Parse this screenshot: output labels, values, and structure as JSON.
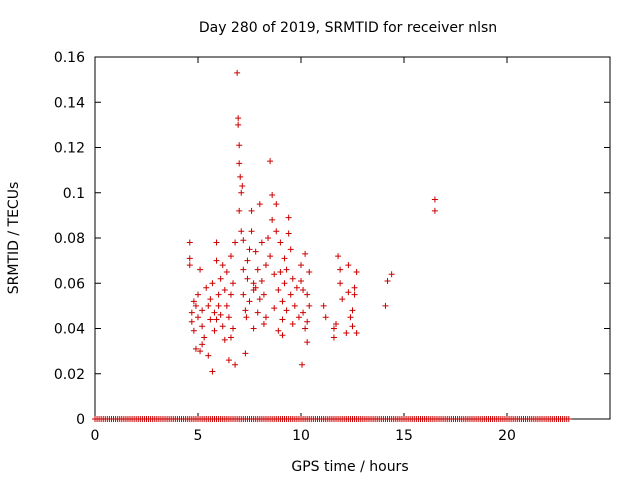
{
  "chart_data": {
    "type": "scatter",
    "title": "Day 280 of 2019, SRMTID for receiver nlsn",
    "xlabel": "GPS time / hours",
    "ylabel": "SRMTID / TECUs",
    "xlim": [
      0,
      25
    ],
    "ylim": [
      0,
      0.16
    ],
    "xticks": [
      0,
      5,
      10,
      15,
      20
    ],
    "yticks": [
      0,
      0.02,
      0.04,
      0.06,
      0.08,
      0.1,
      0.12,
      0.14,
      0.16
    ],
    "xtick_labels": [
      "0",
      "5",
      "10",
      "15",
      "20"
    ],
    "ytick_labels": [
      "0",
      "0.02",
      "0.04",
      "0.06",
      "0.08",
      "0.1",
      "0.12",
      "0.14",
      "0.16"
    ],
    "grid": false,
    "marker": "+",
    "color": "#cc0000",
    "zero_series_x_range": [
      0,
      23
    ],
    "points": [
      [
        4.6,
        0.078
      ],
      [
        4.6,
        0.071
      ],
      [
        4.6,
        0.068
      ],
      [
        4.7,
        0.047
      ],
      [
        4.7,
        0.043
      ],
      [
        4.8,
        0.039
      ],
      [
        4.8,
        0.052
      ],
      [
        4.9,
        0.031
      ],
      [
        4.9,
        0.05
      ],
      [
        5.0,
        0.045
      ],
      [
        5.0,
        0.055
      ],
      [
        5.1,
        0.03
      ],
      [
        5.1,
        0.066
      ],
      [
        5.2,
        0.048
      ],
      [
        5.2,
        0.041
      ],
      [
        5.3,
        0.036
      ],
      [
        5.4,
        0.058
      ],
      [
        5.5,
        0.05
      ],
      [
        5.5,
        0.028
      ],
      [
        5.6,
        0.044
      ],
      [
        5.6,
        0.053
      ],
      [
        5.7,
        0.021
      ],
      [
        5.7,
        0.06
      ],
      [
        5.8,
        0.039
      ],
      [
        5.8,
        0.047
      ],
      [
        5.9,
        0.07
      ],
      [
        5.9,
        0.078
      ],
      [
        6.0,
        0.05
      ],
      [
        6.0,
        0.055
      ],
      [
        6.1,
        0.046
      ],
      [
        6.1,
        0.062
      ],
      [
        6.2,
        0.041
      ],
      [
        6.2,
        0.068
      ],
      [
        6.3,
        0.057
      ],
      [
        6.3,
        0.035
      ],
      [
        6.4,
        0.05
      ],
      [
        6.4,
        0.065
      ],
      [
        6.5,
        0.026
      ],
      [
        6.5,
        0.045
      ],
      [
        6.6,
        0.055
      ],
      [
        6.6,
        0.072
      ],
      [
        6.7,
        0.04
      ],
      [
        6.7,
        0.06
      ],
      [
        6.8,
        0.024
      ],
      [
        6.8,
        0.078
      ],
      [
        6.9,
        0.153
      ],
      [
        6.95,
        0.133
      ],
      [
        6.95,
        0.13
      ],
      [
        7.0,
        0.121
      ],
      [
        7.0,
        0.113
      ],
      [
        7.0,
        0.092
      ],
      [
        7.05,
        0.107
      ],
      [
        7.1,
        0.1
      ],
      [
        7.15,
        0.103
      ],
      [
        7.1,
        0.083
      ],
      [
        7.2,
        0.079
      ],
      [
        7.2,
        0.066
      ],
      [
        7.2,
        0.055
      ],
      [
        7.3,
        0.048
      ],
      [
        7.3,
        0.029
      ],
      [
        7.35,
        0.045
      ],
      [
        7.4,
        0.062
      ],
      [
        7.4,
        0.07
      ],
      [
        7.5,
        0.052
      ],
      [
        7.5,
        0.075
      ],
      [
        7.6,
        0.092
      ],
      [
        7.6,
        0.083
      ],
      [
        7.7,
        0.06
      ],
      [
        7.7,
        0.04
      ],
      [
        7.8,
        0.058
      ],
      [
        7.8,
        0.074
      ],
      [
        7.9,
        0.047
      ],
      [
        7.9,
        0.066
      ],
      [
        8.0,
        0.053
      ],
      [
        8.0,
        0.095
      ],
      [
        8.1,
        0.078
      ],
      [
        8.1,
        0.061
      ],
      [
        8.2,
        0.055
      ],
      [
        8.2,
        0.042
      ],
      [
        8.3,
        0.068
      ],
      [
        8.4,
        0.08
      ],
      [
        8.5,
        0.114
      ],
      [
        8.5,
        0.072
      ],
      [
        8.6,
        0.099
      ],
      [
        8.6,
        0.088
      ],
      [
        8.7,
        0.064
      ],
      [
        8.7,
        0.049
      ],
      [
        8.8,
        0.095
      ],
      [
        8.8,
        0.083
      ],
      [
        8.9,
        0.057
      ],
      [
        8.9,
        0.039
      ],
      [
        9.0,
        0.078
      ],
      [
        9.0,
        0.065
      ],
      [
        9.1,
        0.052
      ],
      [
        9.1,
        0.044
      ],
      [
        9.2,
        0.071
      ],
      [
        9.2,
        0.06
      ],
      [
        9.3,
        0.066
      ],
      [
        9.3,
        0.048
      ],
      [
        9.4,
        0.089
      ],
      [
        9.4,
        0.082
      ],
      [
        9.5,
        0.075
      ],
      [
        9.5,
        0.055
      ],
      [
        9.6,
        0.042
      ],
      [
        9.6,
        0.062
      ],
      [
        9.7,
        0.05
      ],
      [
        9.8,
        0.058
      ],
      [
        9.9,
        0.045
      ],
      [
        10.0,
        0.068
      ],
      [
        10.0,
        0.061
      ],
      [
        10.05,
        0.024
      ],
      [
        10.1,
        0.057
      ],
      [
        10.1,
        0.047
      ],
      [
        10.2,
        0.073
      ],
      [
        10.2,
        0.04
      ],
      [
        10.3,
        0.055
      ],
      [
        10.3,
        0.034
      ],
      [
        10.4,
        0.065
      ],
      [
        10.4,
        0.05
      ],
      [
        11.1,
        0.05
      ],
      [
        11.2,
        0.045
      ],
      [
        11.6,
        0.04
      ],
      [
        11.6,
        0.036
      ],
      [
        11.7,
        0.042
      ],
      [
        11.8,
        0.072
      ],
      [
        11.9,
        0.06
      ],
      [
        11.9,
        0.066
      ],
      [
        12.0,
        0.053
      ],
      [
        12.2,
        0.038
      ],
      [
        12.3,
        0.068
      ],
      [
        12.3,
        0.056
      ],
      [
        12.4,
        0.045
      ],
      [
        12.5,
        0.048
      ],
      [
        12.5,
        0.041
      ],
      [
        12.6,
        0.058
      ],
      [
        12.6,
        0.055
      ],
      [
        12.7,
        0.065
      ],
      [
        12.7,
        0.038
      ],
      [
        14.1,
        0.05
      ],
      [
        14.2,
        0.061
      ],
      [
        14.4,
        0.064
      ],
      [
        16.5,
        0.097
      ],
      [
        16.5,
        0.092
      ],
      [
        5.2,
        0.033
      ],
      [
        5.9,
        0.044
      ],
      [
        6.6,
        0.036
      ],
      [
        7.7,
        0.057
      ],
      [
        8.3,
        0.045
      ],
      [
        9.1,
        0.037
      ],
      [
        10.3,
        0.043
      ]
    ]
  }
}
